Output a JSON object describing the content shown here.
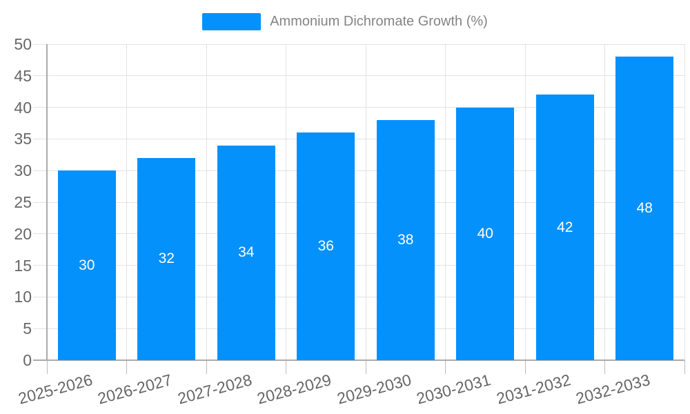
{
  "legend": {
    "label": "Ammonium Dichromate Growth (%)"
  },
  "colors": {
    "bar": "#0591FB",
    "grid": "#e2e2e2",
    "axis": "#aaaaaa",
    "tick": "#bcbcbc",
    "axis_label": "#666666",
    "data_label": "#ffffff",
    "legend_text": "#848484",
    "background": "#ffffff"
  },
  "chart_data": {
    "type": "bar",
    "title": "",
    "categories": [
      "2025-2026",
      "2026-2027",
      "2027-2028",
      "2028-2029",
      "2029-2030",
      "2030-2031",
      "2031-2032",
      "2032-2033"
    ],
    "series": [
      {
        "name": "Ammonium Dichromate Growth (%)",
        "values": [
          30,
          32,
          34,
          36,
          38,
          40,
          42,
          48
        ]
      }
    ],
    "xlabel": "",
    "ylabel": "",
    "ylim": [
      0,
      50
    ],
    "ytick_step": 5,
    "ytick_labels": [
      "0",
      "5",
      "10",
      "15",
      "20",
      "25",
      "30",
      "35",
      "40",
      "45",
      "50"
    ],
    "grid": true,
    "legend_position": "top",
    "x_label_rotation": -15,
    "bar_label_position": "center"
  }
}
